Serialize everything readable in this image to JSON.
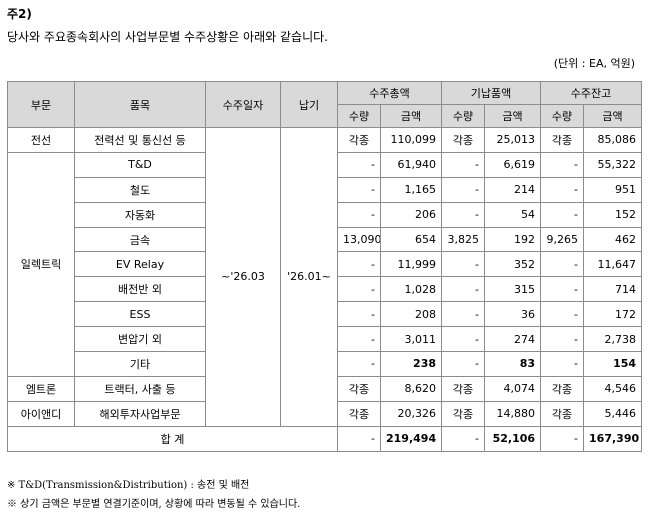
{
  "heading": "주2)",
  "intro": "당사와 주요종속회사의 사업부문별 수주상황은 아래와 같습니다.",
  "unit": "(단위 : EA, 억원)",
  "columns": {
    "segment": "부문",
    "product": "품목",
    "order_date": "수주일자",
    "delivery": "납기",
    "order_total": "수주총액",
    "delivered": "기납품액",
    "backlog": "수주잔고",
    "qty": "수량",
    "amount": "금액"
  },
  "order_date_value": "~'26.03",
  "delivery_value": "'26.01~",
  "rows": [
    {
      "segment": "전선",
      "product": "전력선 및 통신선 등",
      "oq": "각종",
      "oa": "110,099",
      "dq": "각종",
      "da": "25,013",
      "bq": "각종",
      "ba": "85,086"
    },
    {
      "segment": "일렉트릭",
      "product": "T&D",
      "oq": "-",
      "oa": "61,940",
      "dq": "-",
      "da": "6,619",
      "bq": "-",
      "ba": "55,322"
    },
    {
      "product": "철도",
      "oq": "-",
      "oa": "1,165",
      "dq": "-",
      "da": "214",
      "bq": "-",
      "ba": "951"
    },
    {
      "product": "자동화",
      "oq": "-",
      "oa": "206",
      "dq": "-",
      "da": "54",
      "bq": "-",
      "ba": "152"
    },
    {
      "product": "금속",
      "oq": "13,090",
      "oa": "654",
      "dq": "3,825",
      "da": "192",
      "bq": "9,265",
      "ba": "462"
    },
    {
      "product": "EV Relay",
      "oq": "-",
      "oa": "11,999",
      "dq": "-",
      "da": "352",
      "bq": "-",
      "ba": "11,647"
    },
    {
      "product": "배전반 외",
      "oq": "-",
      "oa": "1,028",
      "dq": "-",
      "da": "315",
      "bq": "-",
      "ba": "714"
    },
    {
      "product": "ESS",
      "oq": "-",
      "oa": "208",
      "dq": "-",
      "da": "36",
      "bq": "-",
      "ba": "172"
    },
    {
      "product": "변압기 외",
      "oq": "-",
      "oa": "3,011",
      "dq": "-",
      "da": "274",
      "bq": "-",
      "ba": "2,738"
    },
    {
      "product": "기타",
      "oq": "-",
      "oa": "238",
      "dq": "-",
      "da": "83",
      "bq": "-",
      "ba": "154"
    },
    {
      "segment": "엠트론",
      "product": "트랙터, 사출 등",
      "oq": "각종",
      "oa": "8,620",
      "dq": "각종",
      "da": "4,074",
      "bq": "각종",
      "ba": "4,546"
    },
    {
      "segment": "아이앤디",
      "product": "해외투자사업부문",
      "oq": "각종",
      "oa": "20,326",
      "dq": "각종",
      "da": "14,880",
      "bq": "각종",
      "ba": "5,446"
    }
  ],
  "total": {
    "label": "합 계",
    "oq": "-",
    "oa": "219,494",
    "dq": "-",
    "da": "52,106",
    "bq": "-",
    "ba": "167,390"
  },
  "notes": [
    "※ T&D(Transmission&Distribution) : 송전 및 배전",
    "※ 상기 금액은 부문별 연결기준이며, 상황에 따라 변동될 수 있습니다."
  ]
}
